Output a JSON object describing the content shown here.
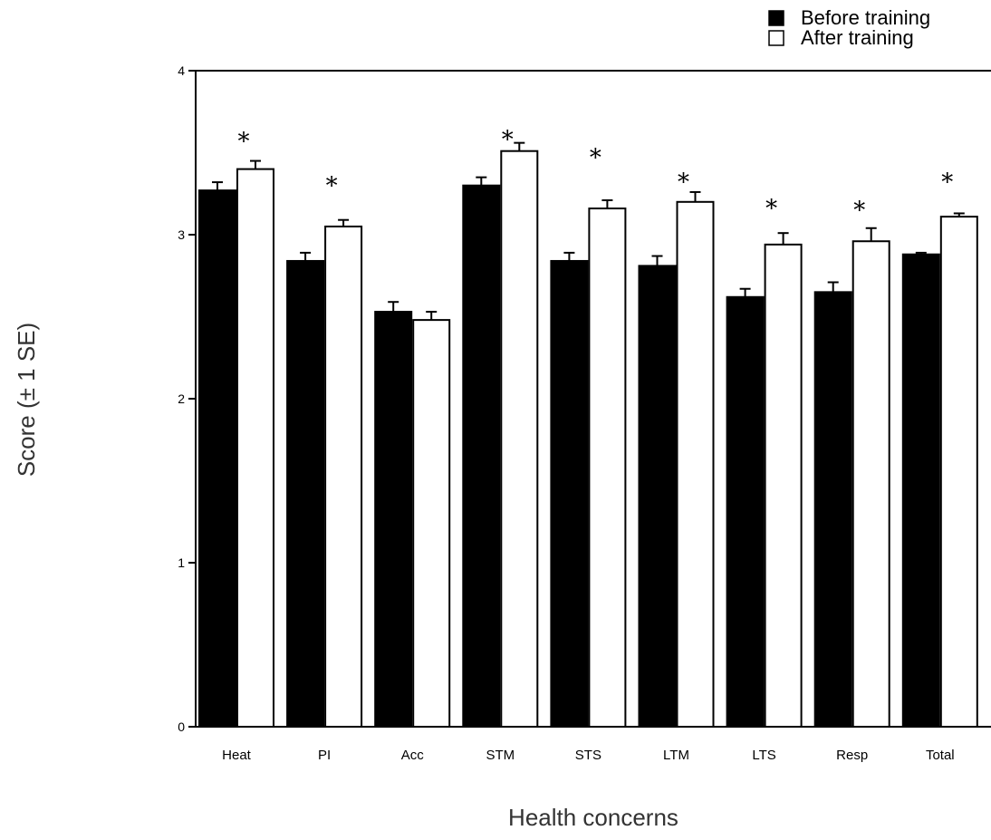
{
  "chart_data": {
    "type": "bar",
    "title": "",
    "xlabel": "Health concerns",
    "ylabel": "Score (± 1 SE)",
    "ylim": [
      0,
      4
    ],
    "yticks": [
      0,
      1,
      2,
      3,
      4
    ],
    "grid": false,
    "legend_position": "top-right",
    "categories": [
      "Heat",
      "PI",
      "Acc",
      "STM",
      "STS",
      "LTM",
      "LTS",
      "Resp",
      "Total"
    ],
    "series": [
      {
        "name": "Before training",
        "color": "#000000",
        "values": [
          3.27,
          2.84,
          2.53,
          3.3,
          2.84,
          2.81,
          2.62,
          2.65,
          2.88
        ],
        "se": [
          0.05,
          0.05,
          0.06,
          0.05,
          0.05,
          0.06,
          0.05,
          0.06,
          0.01
        ]
      },
      {
        "name": "After training",
        "color": "#ffffff",
        "values": [
          3.4,
          3.05,
          2.48,
          3.51,
          3.16,
          3.2,
          2.94,
          2.96,
          3.11
        ],
        "se": [
          0.05,
          0.04,
          0.05,
          0.05,
          0.05,
          0.06,
          0.07,
          0.08,
          0.02
        ]
      }
    ],
    "significance": {
      "symbol": "*",
      "categories": [
        "Heat",
        "PI",
        "STM",
        "STS",
        "LTM",
        "LTS",
        "Resp",
        "Total"
      ],
      "y": [
        3.6,
        3.33,
        3.61,
        3.5,
        3.35,
        3.19,
        3.18,
        3.35
      ]
    }
  }
}
